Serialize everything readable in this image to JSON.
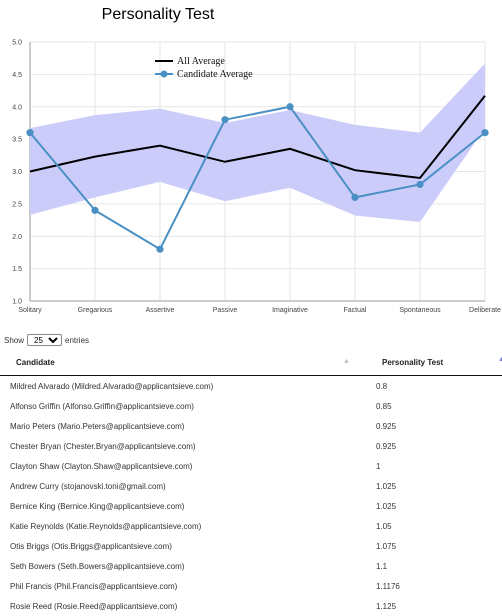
{
  "chart_data": {
    "type": "line",
    "title": "Personality Test",
    "categories": [
      "Solitary",
      "Gregarious",
      "Assertive",
      "Passive",
      "Imaginative",
      "Factual",
      "Spontaneous",
      "Deliberate"
    ],
    "y_ticks": [
      "1.0",
      "1.5",
      "2.0",
      "2.5",
      "3.0",
      "3.5",
      "4.0",
      "4.5",
      "5.0"
    ],
    "ylim": [
      1.0,
      5.0
    ],
    "grid": true,
    "legend_position": "top-center",
    "band": {
      "low": [
        2.33,
        2.6,
        2.84,
        2.54,
        2.75,
        2.32,
        2.22,
        3.67
      ],
      "high": [
        3.67,
        3.87,
        3.97,
        3.75,
        3.95,
        3.72,
        3.6,
        4.67
      ],
      "color": "#c9c9fb"
    },
    "series": [
      {
        "name": "All Average",
        "values": [
          3.0,
          3.23,
          3.4,
          3.15,
          3.35,
          3.02,
          2.9,
          4.17
        ],
        "color": "#000000",
        "markers": false
      },
      {
        "name": "Candidate Average",
        "values": [
          3.6,
          2.4,
          1.8,
          3.8,
          4.0,
          2.6,
          2.8,
          3.6
        ],
        "color": "#4a90c4",
        "markers": true
      }
    ]
  },
  "controls": {
    "show_label": "Show",
    "entries_value": "25",
    "entries_label": "entries"
  },
  "table": {
    "headers": [
      "Candidate",
      "Personality Test"
    ],
    "rows": [
      [
        "Mildred Alvarado (Mildred.Alvarado@applicantsieve.com)",
        "0.8"
      ],
      [
        "Alfonso Griffin (Alfonso.Griffin@applicantsieve.com)",
        "0.85"
      ],
      [
        "Mario Peters (Mario.Peters@applicantsieve.com)",
        "0.925"
      ],
      [
        "Chester Bryan (Chester.Bryan@applicantsieve.com)",
        "0.925"
      ],
      [
        "Clayton Shaw (Clayton.Shaw@applicantsieve.com)",
        "1"
      ],
      [
        "Andrew Curry (stojanovski.toni@gmail.com)",
        "1.025"
      ],
      [
        "Bernice King (Bernice.King@applicantsieve.com)",
        "1.025"
      ],
      [
        "Katie Reynolds (Katie.Reynolds@applicantsieve.com)",
        "1.05"
      ],
      [
        "Otis Briggs (Otis.Briggs@applicantsieve.com)",
        "1.075"
      ],
      [
        "Seth Bowers (Seth.Bowers@applicantsieve.com)",
        "1.1"
      ],
      [
        "Phil Francis (Phil.Francis@applicantsieve.com)",
        "1.1176"
      ],
      [
        "Rosie Reed (Rosie.Reed@applicantsieve.com)",
        "1.125"
      ]
    ]
  }
}
